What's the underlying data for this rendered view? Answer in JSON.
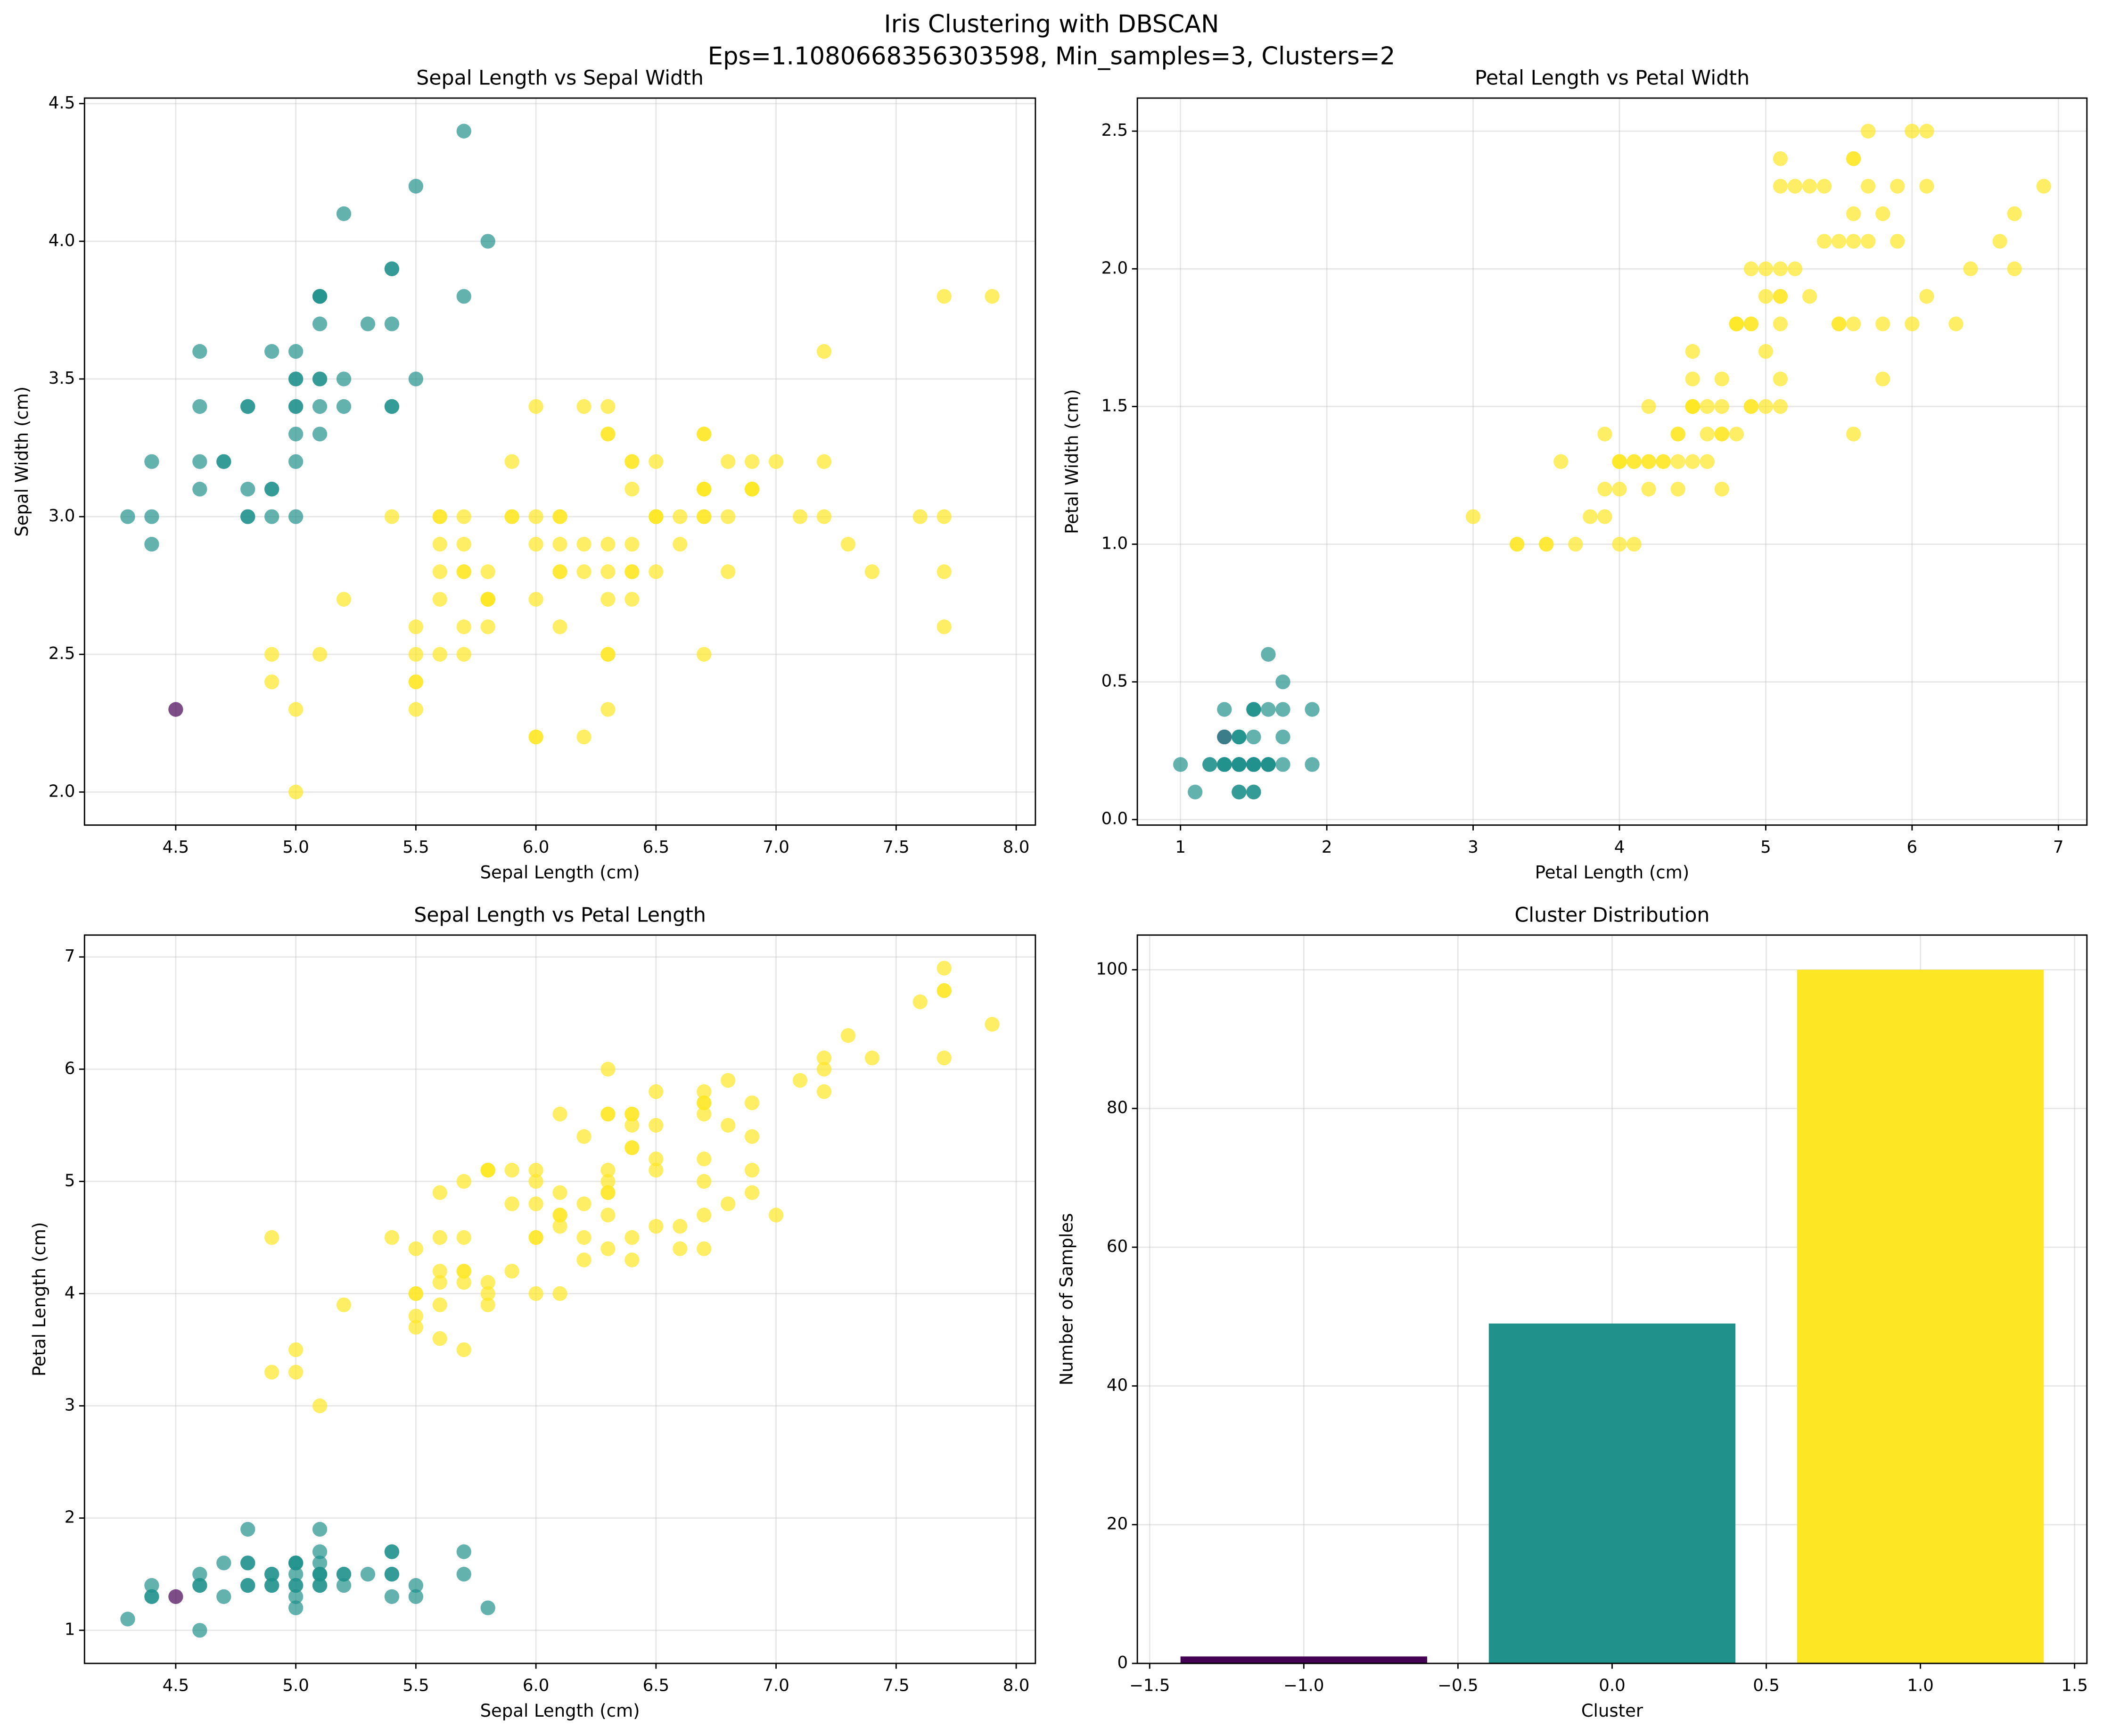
{
  "suptitle": [
    "Iris Clustering with DBSCAN",
    "Eps=1.1080668356303598, Min_samples=3, Clusters=2"
  ],
  "chart_data": [
    {
      "type": "scatter",
      "title": "Sepal Length vs Sepal Width",
      "xlabel": "Sepal Length (cm)",
      "ylabel": "Sepal Width (cm)",
      "grid": true,
      "xlim": [
        4.12,
        8.08
      ],
      "ylim": [
        1.88,
        4.52
      ],
      "xticks": [
        4.5,
        {
          "value": 5,
          "label": "5.0"
        },
        5.5,
        {
          "value": 6,
          "label": "6.0"
        },
        6.5,
        {
          "value": 7,
          "label": "7.0"
        },
        7.5,
        {
          "value": 8,
          "label": "8.0"
        }
      ],
      "yticks": [
        {
          "value": 2,
          "label": "2.0"
        },
        2.5,
        {
          "value": 3,
          "label": "3.0"
        },
        3.5,
        {
          "value": 4,
          "label": "4.0"
        },
        4.5
      ],
      "series": [
        {
          "color": "#440154",
          "x": [
            4.5
          ],
          "y": [
            2.3
          ]
        },
        {
          "color": "#21918c",
          "x": [
            5.1,
            4.9,
            4.7,
            4.6,
            5.0,
            5.4,
            4.6,
            5.0,
            4.4,
            4.9,
            5.4,
            4.8,
            4.8,
            4.3,
            5.8,
            5.7,
            5.4,
            5.1,
            5.7,
            5.1,
            5.4,
            5.1,
            4.6,
            5.1,
            4.8,
            5.0,
            5.0,
            5.2,
            5.2,
            4.7,
            4.8,
            5.4,
            5.2,
            5.5,
            4.9,
            5.0,
            5.5,
            4.9,
            4.4,
            5.1,
            5.0,
            4.4,
            5.0,
            5.1,
            4.8,
            5.1,
            4.6,
            5.3,
            5.0
          ],
          "y": [
            3.5,
            3.0,
            3.2,
            3.1,
            3.6,
            3.9,
            3.4,
            3.4,
            2.9,
            3.1,
            3.7,
            3.4,
            3.0,
            3.0,
            4.0,
            4.4,
            3.9,
            3.5,
            3.8,
            3.8,
            3.4,
            3.7,
            3.6,
            3.3,
            3.4,
            3.0,
            3.4,
            3.5,
            3.4,
            3.2,
            3.1,
            3.4,
            4.1,
            4.2,
            3.1,
            3.2,
            3.5,
            3.6,
            3.0,
            3.4,
            3.5,
            3.2,
            3.5,
            3.8,
            3.0,
            3.8,
            3.2,
            3.7,
            3.3
          ]
        },
        {
          "color": "#fde725",
          "x": [
            7.0,
            6.4,
            6.9,
            5.5,
            6.5,
            5.7,
            6.3,
            4.9,
            6.6,
            5.2,
            5.0,
            5.9,
            6.0,
            6.1,
            5.6,
            6.7,
            5.6,
            5.8,
            6.2,
            5.6,
            5.9,
            6.1,
            6.3,
            6.1,
            6.4,
            6.6,
            6.8,
            6.7,
            6.0,
            5.7,
            5.5,
            5.5,
            5.8,
            6.0,
            5.4,
            6.0,
            6.7,
            6.3,
            5.6,
            5.5,
            5.5,
            6.1,
            5.8,
            5.0,
            5.6,
            5.7,
            5.7,
            6.2,
            5.1,
            5.7,
            6.3,
            5.8,
            7.1,
            6.3,
            6.5,
            7.6,
            4.9,
            7.3,
            6.7,
            7.2,
            6.5,
            6.4,
            6.8,
            5.7,
            5.8,
            6.4,
            6.5,
            7.7,
            7.7,
            6.0,
            6.9,
            5.6,
            7.7,
            6.3,
            6.7,
            7.2,
            6.2,
            6.1,
            6.4,
            7.2,
            7.4,
            7.9,
            6.4,
            6.3,
            6.1,
            7.7,
            6.3,
            6.4,
            6.0,
            6.9,
            6.7,
            6.9,
            5.8,
            6.8,
            6.7,
            6.7,
            6.3,
            6.5,
            6.2,
            5.9
          ],
          "y": [
            3.2,
            3.2,
            3.1,
            2.3,
            2.8,
            2.8,
            3.3,
            2.4,
            2.9,
            2.7,
            2.0,
            3.0,
            2.2,
            2.9,
            2.9,
            3.1,
            3.0,
            2.7,
            2.2,
            2.5,
            3.2,
            2.8,
            2.5,
            2.8,
            2.9,
            3.0,
            2.8,
            3.0,
            2.9,
            2.6,
            2.4,
            2.4,
            2.7,
            2.7,
            3.0,
            3.4,
            3.1,
            2.3,
            3.0,
            2.5,
            2.6,
            3.0,
            2.6,
            2.3,
            2.7,
            3.0,
            2.9,
            2.9,
            2.5,
            2.8,
            3.3,
            2.7,
            3.0,
            2.9,
            3.0,
            3.0,
            2.5,
            2.9,
            2.5,
            3.6,
            3.2,
            2.7,
            3.0,
            2.5,
            2.8,
            3.2,
            3.0,
            3.8,
            2.6,
            2.2,
            3.2,
            2.8,
            2.8,
            2.7,
            3.3,
            3.2,
            2.8,
            3.0,
            2.8,
            3.0,
            2.8,
            3.8,
            2.8,
            2.8,
            2.6,
            3.0,
            3.4,
            3.1,
            3.0,
            3.1,
            3.1,
            3.1,
            2.7,
            3.2,
            3.3,
            3.0,
            2.5,
            3.0,
            3.4,
            3.0
          ]
        }
      ]
    },
    {
      "type": "scatter",
      "title": "Petal Length vs Petal Width",
      "xlabel": "Petal Length (cm)",
      "ylabel": "Petal Width (cm)",
      "grid": true,
      "xlim": [
        0.705,
        7.195
      ],
      "ylim": [
        -0.02,
        2.62
      ],
      "xticks": [
        1,
        2,
        3,
        4,
        5,
        6,
        7
      ],
      "yticks": [
        {
          "value": 0,
          "label": "0.0"
        },
        0.5,
        {
          "value": 1,
          "label": "1.0"
        },
        1.5,
        {
          "value": 2,
          "label": "2.0"
        },
        2.5
      ],
      "series": [
        {
          "color": "#440154",
          "x": [
            1.3
          ],
          "y": [
            0.3
          ]
        },
        {
          "color": "#21918c",
          "x": [
            1.4,
            1.4,
            1.3,
            1.5,
            1.4,
            1.7,
            1.4,
            1.5,
            1.4,
            1.5,
            1.5,
            1.6,
            1.4,
            1.1,
            1.2,
            1.5,
            1.3,
            1.4,
            1.7,
            1.5,
            1.7,
            1.5,
            1.0,
            1.7,
            1.9,
            1.6,
            1.6,
            1.5,
            1.4,
            1.6,
            1.6,
            1.5,
            1.5,
            1.4,
            1.5,
            1.2,
            1.3,
            1.4,
            1.3,
            1.5,
            1.3,
            1.3,
            1.6,
            1.9,
            1.4,
            1.6,
            1.4,
            1.5,
            1.4
          ],
          "y": [
            0.2,
            0.2,
            0.2,
            0.2,
            0.2,
            0.4,
            0.3,
            0.2,
            0.2,
            0.1,
            0.2,
            0.2,
            0.1,
            0.1,
            0.2,
            0.4,
            0.4,
            0.3,
            0.3,
            0.3,
            0.2,
            0.4,
            0.2,
            0.5,
            0.2,
            0.2,
            0.4,
            0.2,
            0.2,
            0.2,
            0.2,
            0.4,
            0.1,
            0.2,
            0.2,
            0.2,
            0.2,
            0.1,
            0.2,
            0.2,
            0.3,
            0.2,
            0.6,
            0.4,
            0.3,
            0.2,
            0.2,
            0.2,
            0.2
          ]
        },
        {
          "color": "#fde725",
          "x": [
            4.7,
            4.5,
            4.9,
            4.0,
            4.6,
            4.5,
            4.7,
            3.3,
            4.6,
            3.9,
            3.5,
            4.2,
            4.0,
            4.7,
            3.6,
            4.4,
            4.5,
            4.1,
            4.5,
            3.9,
            4.8,
            4.0,
            4.9,
            4.7,
            4.3,
            4.4,
            4.8,
            5.0,
            4.5,
            3.5,
            3.8,
            3.7,
            3.9,
            5.1,
            4.5,
            4.5,
            4.7,
            4.4,
            4.1,
            4.0,
            4.4,
            4.6,
            4.0,
            3.3,
            4.2,
            4.2,
            4.2,
            4.3,
            3.0,
            4.1,
            6.0,
            5.1,
            5.9,
            5.6,
            5.8,
            6.6,
            4.5,
            6.3,
            5.8,
            6.1,
            5.1,
            5.3,
            5.5,
            5.0,
            5.1,
            5.3,
            5.5,
            6.7,
            6.9,
            5.0,
            5.7,
            4.9,
            6.7,
            4.9,
            5.7,
            6.0,
            4.8,
            4.9,
            5.6,
            5.8,
            6.1,
            6.4,
            5.6,
            5.1,
            5.6,
            6.1,
            5.6,
            5.5,
            4.8,
            5.4,
            5.6,
            5.1,
            5.1,
            5.9,
            5.7,
            5.2,
            5.0,
            5.2,
            5.4,
            5.1
          ],
          "y": [
            1.4,
            1.5,
            1.5,
            1.3,
            1.5,
            1.3,
            1.6,
            1.0,
            1.3,
            1.4,
            1.0,
            1.5,
            1.0,
            1.4,
            1.3,
            1.4,
            1.5,
            1.0,
            1.5,
            1.1,
            1.8,
            1.3,
            1.5,
            1.2,
            1.3,
            1.4,
            1.4,
            1.7,
            1.5,
            1.0,
            1.1,
            1.0,
            1.2,
            1.6,
            1.5,
            1.6,
            1.5,
            1.3,
            1.3,
            1.3,
            1.2,
            1.4,
            1.2,
            1.0,
            1.3,
            1.2,
            1.3,
            1.3,
            1.1,
            1.3,
            2.5,
            1.9,
            2.1,
            1.8,
            2.2,
            2.1,
            1.7,
            1.8,
            1.8,
            2.5,
            2.0,
            1.9,
            2.1,
            2.0,
            2.4,
            2.3,
            1.8,
            2.2,
            2.3,
            1.5,
            2.3,
            2.0,
            2.0,
            1.8,
            2.1,
            1.8,
            1.8,
            1.8,
            2.1,
            1.6,
            1.9,
            2.0,
            2.2,
            1.5,
            1.4,
            2.3,
            2.4,
            1.8,
            1.8,
            2.1,
            2.4,
            2.3,
            1.9,
            2.3,
            2.5,
            2.3,
            1.9,
            2.0,
            2.3,
            1.8
          ]
        }
      ]
    },
    {
      "type": "scatter",
      "title": "Sepal Length vs Petal Length",
      "xlabel": "Sepal Length (cm)",
      "ylabel": "Petal Length (cm)",
      "grid": true,
      "xlim": [
        4.12,
        8.08
      ],
      "ylim": [
        0.705,
        7.195
      ],
      "xticks": [
        4.5,
        {
          "value": 5,
          "label": "5.0"
        },
        5.5,
        {
          "value": 6,
          "label": "6.0"
        },
        6.5,
        {
          "value": 7,
          "label": "7.0"
        },
        7.5,
        {
          "value": 8,
          "label": "8.0"
        }
      ],
      "yticks": [
        1,
        2,
        3,
        4,
        5,
        6,
        7
      ],
      "series": [
        {
          "color": "#440154",
          "x": [
            4.5
          ],
          "y": [
            1.3
          ]
        },
        {
          "color": "#21918c",
          "x": [
            5.1,
            4.9,
            4.7,
            4.6,
            5.0,
            5.4,
            4.6,
            5.0,
            4.4,
            4.9,
            5.4,
            4.8,
            4.8,
            4.3,
            5.8,
            5.7,
            5.4,
            5.1,
            5.7,
            5.1,
            5.4,
            5.1,
            4.6,
            5.1,
            4.8,
            5.0,
            5.0,
            5.2,
            5.2,
            4.7,
            4.8,
            5.4,
            5.2,
            5.5,
            4.9,
            5.0,
            5.5,
            4.9,
            4.4,
            5.1,
            5.0,
            4.4,
            5.0,
            5.1,
            4.8,
            5.1,
            4.6,
            5.3,
            5.0
          ],
          "y": [
            1.4,
            1.4,
            1.3,
            1.5,
            1.4,
            1.7,
            1.4,
            1.5,
            1.4,
            1.5,
            1.5,
            1.6,
            1.4,
            1.1,
            1.2,
            1.5,
            1.3,
            1.4,
            1.7,
            1.5,
            1.7,
            1.5,
            1.0,
            1.7,
            1.9,
            1.6,
            1.6,
            1.5,
            1.4,
            1.6,
            1.6,
            1.5,
            1.5,
            1.4,
            1.5,
            1.2,
            1.3,
            1.4,
            1.3,
            1.5,
            1.3,
            1.3,
            1.6,
            1.9,
            1.4,
            1.6,
            1.4,
            1.5,
            1.4
          ]
        },
        {
          "color": "#fde725",
          "x": [
            7.0,
            6.4,
            6.9,
            5.5,
            6.5,
            5.7,
            6.3,
            4.9,
            6.6,
            5.2,
            5.0,
            5.9,
            6.0,
            6.1,
            5.6,
            6.7,
            5.6,
            5.8,
            6.2,
            5.6,
            5.9,
            6.1,
            6.3,
            6.1,
            6.4,
            6.6,
            6.8,
            6.7,
            6.0,
            5.7,
            5.5,
            5.5,
            5.8,
            6.0,
            5.4,
            6.0,
            6.7,
            6.3,
            5.6,
            5.5,
            5.5,
            6.1,
            5.8,
            5.0,
            5.6,
            5.7,
            5.7,
            6.2,
            5.1,
            5.7,
            6.3,
            5.8,
            7.1,
            6.3,
            6.5,
            7.6,
            4.9,
            7.3,
            6.7,
            7.2,
            6.5,
            6.4,
            6.8,
            5.7,
            5.8,
            6.4,
            6.5,
            7.7,
            7.7,
            6.0,
            6.9,
            5.6,
            7.7,
            6.3,
            6.7,
            7.2,
            6.2,
            6.1,
            6.4,
            7.2,
            7.4,
            7.9,
            6.4,
            6.3,
            6.1,
            7.7,
            6.3,
            6.4,
            6.0,
            6.9,
            6.7,
            6.9,
            5.8,
            6.8,
            6.7,
            6.7,
            6.3,
            6.5,
            6.2,
            5.9
          ],
          "y": [
            4.7,
            4.5,
            4.9,
            4.0,
            4.6,
            4.5,
            4.7,
            3.3,
            4.6,
            3.9,
            3.5,
            4.2,
            4.0,
            4.7,
            3.6,
            4.4,
            4.5,
            4.1,
            4.5,
            3.9,
            4.8,
            4.0,
            4.9,
            4.7,
            4.3,
            4.4,
            4.8,
            5.0,
            4.5,
            3.5,
            3.8,
            3.7,
            3.9,
            5.1,
            4.5,
            4.5,
            4.7,
            4.4,
            4.1,
            4.0,
            4.4,
            4.6,
            4.0,
            3.3,
            4.2,
            4.2,
            4.2,
            4.3,
            3.0,
            4.1,
            6.0,
            5.1,
            5.9,
            5.6,
            5.8,
            6.6,
            4.5,
            6.3,
            5.8,
            6.1,
            5.1,
            5.3,
            5.5,
            5.0,
            5.1,
            5.3,
            5.5,
            6.7,
            6.9,
            5.0,
            5.7,
            4.9,
            6.7,
            4.9,
            5.7,
            6.0,
            4.8,
            4.9,
            5.6,
            5.8,
            6.1,
            6.4,
            5.6,
            5.1,
            5.6,
            6.1,
            5.6,
            5.5,
            4.8,
            5.4,
            5.6,
            5.1,
            5.1,
            5.9,
            5.7,
            5.2,
            5.0,
            5.2,
            5.4,
            5.1
          ]
        }
      ]
    },
    {
      "type": "bar",
      "title": "Cluster Distribution",
      "xlabel": "Cluster",
      "ylabel": "Number of Samples",
      "grid": true,
      "x": [
        -1,
        0,
        1
      ],
      "values": [
        1,
        49,
        100
      ],
      "colors": [
        "#440154",
        "#21918c",
        "#fde725"
      ],
      "xlim": [
        -1.54,
        1.54
      ],
      "ylim": [
        0,
        105
      ],
      "xticks": [
        {
          "value": -1.5,
          "label": "−1.5"
        },
        {
          "value": -1,
          "label": "−1.0"
        },
        {
          "value": -0.5,
          "label": "−0.5"
        },
        {
          "value": 0,
          "label": "0.0"
        },
        0.5,
        {
          "value": 1,
          "label": "1.0"
        },
        1.5
      ],
      "yticks": [
        0,
        20,
        40,
        60,
        80,
        100
      ]
    }
  ]
}
